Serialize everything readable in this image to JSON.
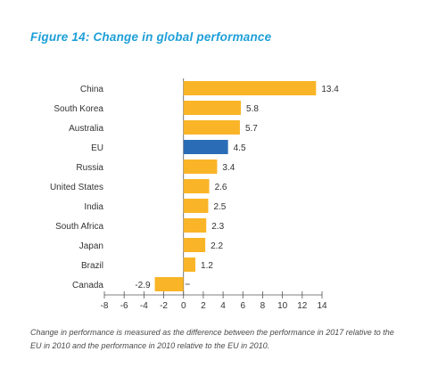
{
  "figure_title": "Figure 14: Change in global performance",
  "note": "Change in performance is measured as the difference between the performance in 2017 relative to the EU in 2010 and the performance in 2010 relative to the EU in 2010.",
  "colors": {
    "title": "#1e9fd8",
    "bar": "#f9b527",
    "highlight_bar": "#2a6db6",
    "axis": "#555555",
    "text": "#333333"
  },
  "chart_data": {
    "type": "bar",
    "orientation": "horizontal",
    "categories": [
      "China",
      "South Korea",
      "Australia",
      "EU",
      "Russia",
      "United States",
      "India",
      "South Africa",
      "Japan",
      "Brazil",
      "Canada"
    ],
    "values": [
      13.4,
      5.8,
      5.7,
      4.5,
      3.4,
      2.6,
      2.5,
      2.3,
      2.2,
      1.2,
      -2.9
    ],
    "value_labels": [
      "13.4",
      "5.8",
      "5.7",
      "4.5",
      "3.4",
      "2.6",
      "2.5",
      "2.3",
      "2.2",
      "1.2",
      "-2.9"
    ],
    "highlight": "EU",
    "xlim": [
      -8,
      14
    ],
    "xticks": [
      -8,
      -6,
      -4,
      -2,
      0,
      2,
      4,
      6,
      8,
      10,
      12,
      14
    ],
    "xtick_labels": [
      "-8",
      "-6",
      "-4",
      "-2",
      "0",
      "2",
      "4",
      "6",
      "8",
      "10",
      "12",
      "14"
    ],
    "title": "",
    "xlabel": "",
    "ylabel": "",
    "grid": false,
    "legend": "none"
  }
}
